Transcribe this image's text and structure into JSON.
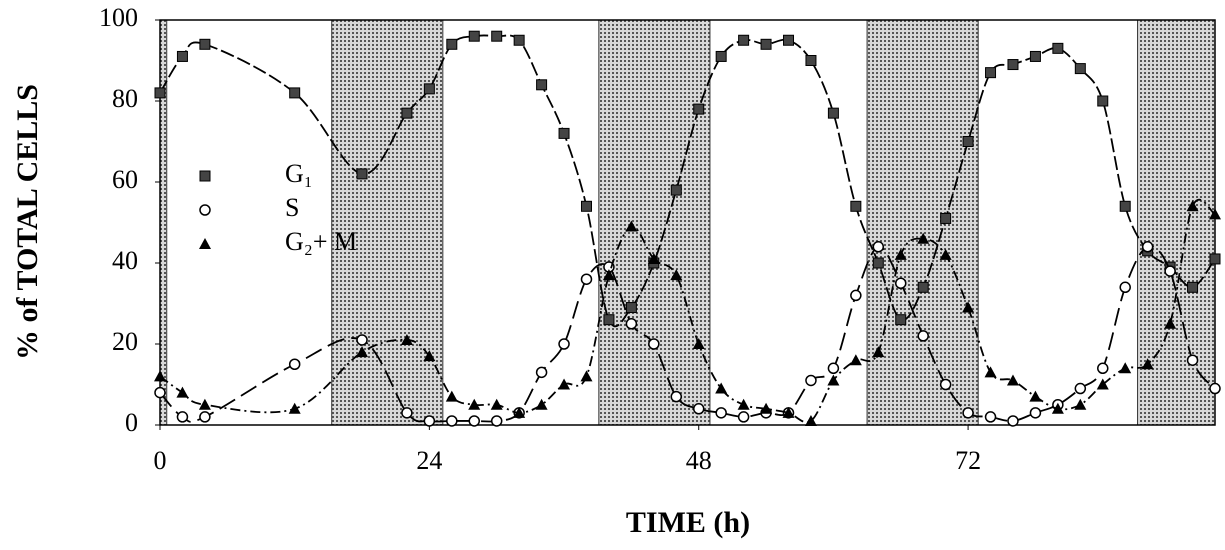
{
  "chart_data": {
    "type": "line",
    "xlabel": "TIME (h)",
    "ylabel": "% of TOTAL CELLS",
    "x": [
      0,
      2,
      4,
      12,
      18,
      22,
      24,
      26,
      28,
      30,
      32,
      34,
      36,
      38,
      40,
      42,
      44,
      46,
      48,
      50,
      52,
      54,
      56,
      58,
      60,
      62,
      64,
      66,
      68,
      70,
      72,
      74,
      76,
      78,
      80,
      82,
      84,
      86,
      88,
      90,
      92,
      94
    ],
    "series": [
      {
        "name": "G₁",
        "marker": "square",
        "dash": "14 4",
        "color": "#000000",
        "values": [
          82,
          91,
          94,
          82,
          62,
          77,
          83,
          94,
          96,
          96,
          95,
          84,
          72,
          54,
          26,
          29,
          40,
          58,
          78,
          91,
          95,
          94,
          95,
          90,
          77,
          54,
          40,
          26,
          34,
          51,
          70,
          87,
          89,
          91,
          93,
          88,
          80,
          54,
          43,
          39,
          34,
          41
        ]
      },
      {
        "name": "S",
        "marker": "circle",
        "dash": "18 7",
        "color": "#000000",
        "values": [
          8,
          2,
          2,
          15,
          21,
          3,
          1,
          1,
          1,
          1,
          3,
          13,
          20,
          36,
          39,
          25,
          20,
          7,
          4,
          3,
          2,
          3,
          3,
          11,
          14,
          32,
          44,
          35,
          22,
          10,
          3,
          2,
          1,
          3,
          5,
          9,
          14,
          34,
          44,
          38,
          16,
          9
        ]
      },
      {
        "name": "G₂+ M",
        "marker": "triangle",
        "dash": "10 4 2 4",
        "color": "#000000",
        "values": [
          12,
          8,
          5,
          4,
          18,
          21,
          17,
          7,
          5,
          5,
          3,
          5,
          10,
          12,
          37,
          49,
          41,
          37,
          20,
          9,
          5,
          4,
          3,
          1,
          11,
          16,
          18,
          42,
          46,
          42,
          29,
          13,
          11,
          7,
          4,
          5,
          10,
          14,
          15,
          25,
          54,
          52
        ]
      }
    ],
    "xlim": [
      0,
      94
    ],
    "ylim": [
      0,
      100
    ],
    "xticks": [
      0,
      24,
      48,
      72
    ],
    "yticks": [
      0,
      20,
      40,
      60,
      80,
      100
    ],
    "shaded": [
      [
        0,
        0.6
      ],
      [
        15.3,
        25.2
      ],
      [
        39.1,
        49
      ],
      [
        63,
        72.9
      ],
      [
        87.1,
        94
      ]
    ],
    "shade_color": "#b9b9b9"
  }
}
